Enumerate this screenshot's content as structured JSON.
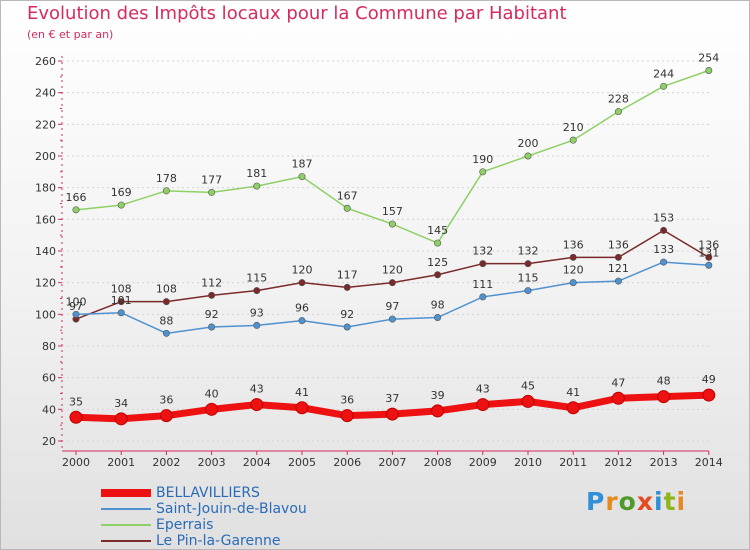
{
  "header": {
    "title": "Evolution des Impôts locaux pour la Commune par Habitant",
    "subtitle": "(en € et par an)"
  },
  "colors": {
    "title": "#d52b5e",
    "axis": "#d52b5e",
    "legend_text": "#2a6bb8",
    "label_text": "#333333"
  },
  "logo": {
    "text": "Proxiti"
  },
  "chart_data": {
    "type": "line",
    "x": [
      "2000",
      "2001",
      "2002",
      "2003",
      "2004",
      "2005",
      "2006",
      "2007",
      "2008",
      "2009",
      "2010",
      "2011",
      "2012",
      "2013",
      "2014"
    ],
    "ylim": [
      20,
      260
    ],
    "yticks": [
      20,
      40,
      60,
      80,
      100,
      120,
      140,
      160,
      180,
      200,
      220,
      240,
      260
    ],
    "grid": true,
    "legend_position": "bottom-left",
    "series": [
      {
        "name": "BELLAVILLIERS",
        "color": "#ee1111",
        "values": [
          35,
          34,
          36,
          40,
          43,
          41,
          36,
          37,
          39,
          43,
          45,
          41,
          47,
          48,
          49
        ]
      },
      {
        "name": "Saint-Jouin-de-Blavou",
        "color": "#4f92cf",
        "values": [
          100,
          101,
          88,
          92,
          93,
          96,
          92,
          97,
          98,
          111,
          115,
          120,
          121,
          133,
          131
        ]
      },
      {
        "name": "Eperrais",
        "color": "#8fd066",
        "values": [
          166,
          169,
          178,
          177,
          181,
          187,
          167,
          157,
          145,
          190,
          200,
          210,
          228,
          244,
          254
        ]
      },
      {
        "name": "Le Pin-la-Garenne",
        "color": "#7a2a2a",
        "values": [
          97,
          108,
          108,
          112,
          115,
          120,
          117,
          120,
          125,
          132,
          132,
          136,
          136,
          153,
          136
        ]
      }
    ]
  }
}
